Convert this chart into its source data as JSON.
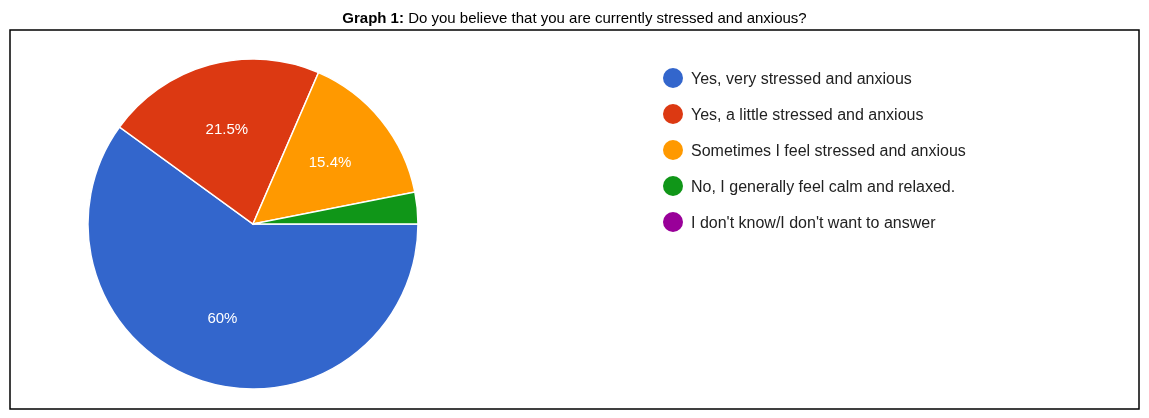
{
  "chart_data": {
    "type": "pie",
    "title": "Graph 1: Do you believe that you are currently stressed and anxious?",
    "categories": [
      "Yes, very stressed and anxious",
      "Yes, a little stressed and anxious",
      "Sometimes I feel stressed and anxious",
      "No, I generally feel calm and relaxed.",
      "I don't know/I don't want to answer"
    ],
    "values": [
      60,
      21.5,
      15.4,
      3.1,
      0
    ],
    "colors": [
      "#3366cc",
      "#dc3912",
      "#ff9900",
      "#109618",
      "#990099"
    ],
    "value_labels": [
      "60%",
      "21.5%",
      "15.4%",
      null,
      null
    ],
    "legend": "right"
  }
}
